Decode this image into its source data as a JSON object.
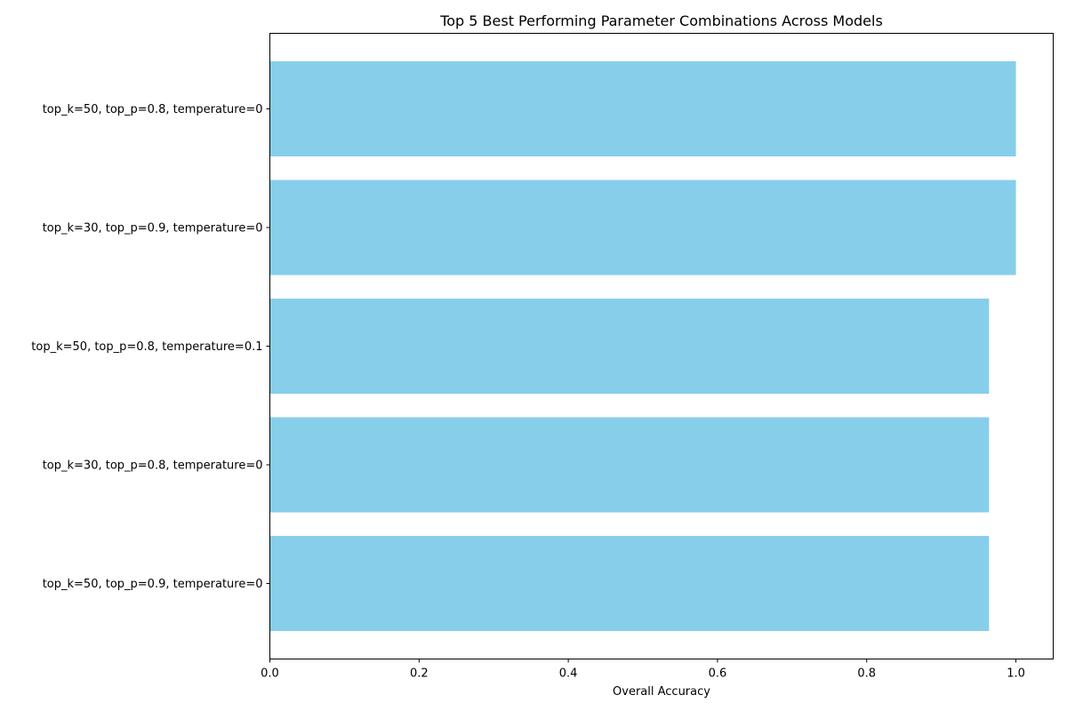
{
  "chart_data": {
    "type": "bar",
    "orientation": "horizontal",
    "title": "Top 5 Best Performing Parameter Combinations Across Models",
    "xlabel": "Overall Accuracy",
    "ylabel": "",
    "categories": [
      "top_k=50, top_p=0.8, temperature=0",
      "top_k=30, top_p=0.9, temperature=0",
      "top_k=50, top_p=0.8, temperature=0.1",
      "top_k=30, top_p=0.8, temperature=0",
      "top_k=50, top_p=0.9, temperature=0"
    ],
    "values": [
      1.0,
      1.0,
      0.964,
      0.964,
      0.964
    ],
    "xlim": [
      0,
      1.05
    ],
    "xticks": [
      "0.0",
      "0.2",
      "0.4",
      "0.6",
      "0.8",
      "1.0"
    ],
    "bar_color": "#87ceeb",
    "grid": false,
    "legend": "none"
  }
}
